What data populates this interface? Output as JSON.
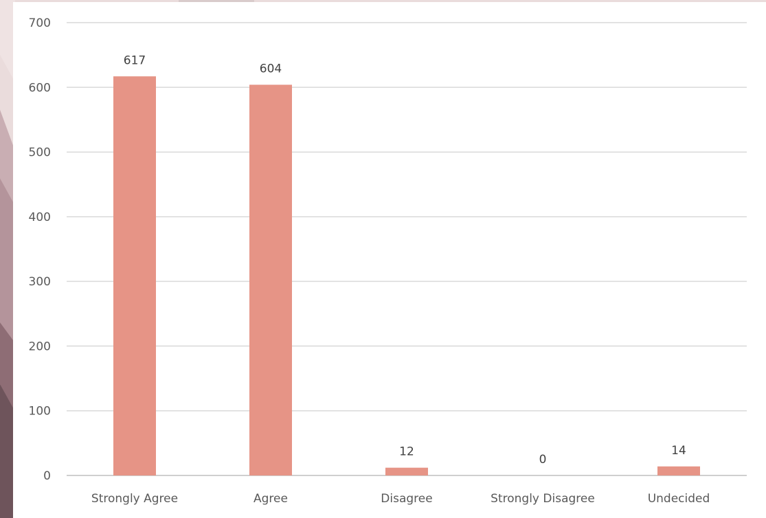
{
  "chart_data": {
    "type": "bar",
    "title": "",
    "xlabel": "",
    "ylabel": "",
    "categories": [
      "Strongly Agree",
      "Agree",
      "Disagree",
      "Strongly Disagree",
      "Undecided"
    ],
    "values": [
      617,
      604,
      12,
      0,
      14
    ],
    "data_labels": [
      "617",
      "604",
      "12",
      "0",
      "14"
    ],
    "yticks": [
      0,
      100,
      200,
      300,
      400,
      500,
      600,
      700
    ],
    "ytick_labels": [
      "0",
      "100",
      "200",
      "300",
      "400",
      "500",
      "600",
      "700"
    ],
    "ylim": [
      0,
      700
    ],
    "grid": true,
    "legend": "none",
    "colors": {
      "bar": "#e69486",
      "grid": "#d9d9d9",
      "axis": "#bfbfbf",
      "text": "#595959",
      "background": "#ffffff"
    }
  }
}
